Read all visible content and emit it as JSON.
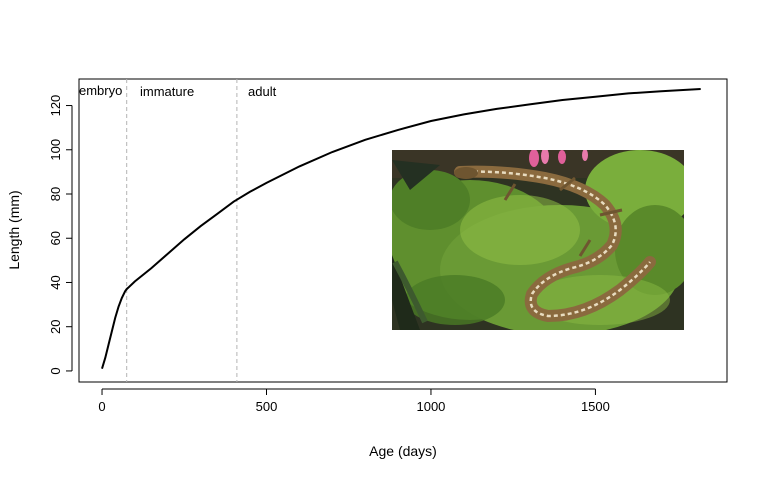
{
  "chart_data": {
    "type": "line",
    "title": "",
    "xlabel": "Age (days)",
    "ylabel": "Length (mm)",
    "xlim": [
      -70,
      1900
    ],
    "ylim": [
      -5,
      132
    ],
    "x_ticks": [
      0,
      500,
      1000,
      1500
    ],
    "y_ticks": [
      0,
      20,
      40,
      60,
      80,
      100,
      120
    ],
    "grid": false,
    "legend": "none",
    "line_color": "#000000",
    "stage_line_color": "#b4b4b4",
    "stage_boundaries": [
      75,
      410
    ],
    "stage_labels": [
      "embryo",
      "immature",
      "adult"
    ],
    "series": [
      {
        "x": [
          0,
          10,
          20,
          30,
          40,
          50,
          60,
          70,
          75,
          100,
          150,
          200,
          250,
          300,
          350,
          400,
          450,
          500,
          600,
          700,
          800,
          900,
          1000,
          1100,
          1200,
          1300,
          1400,
          1500,
          1600,
          1700,
          1820
        ],
        "y": [
          1,
          6,
          12,
          18,
          24,
          29,
          33,
          36,
          37,
          40.5,
          46.5,
          53,
          59.5,
          65.5,
          71,
          76.5,
          81,
          85,
          92.5,
          99,
          104.5,
          109,
          113,
          116,
          118.5,
          120.5,
          122.5,
          124,
          125.5,
          126.5,
          127.5
        ]
      }
    ]
  },
  "photo": {
    "subject": "lizard on moss",
    "colors": {
      "moss": "#5f8f2e",
      "moss_light": "#8fbf45",
      "shadow": "#2a2a1c",
      "lizard_body": "#8a6a3e",
      "lizard_stripe": "#e8dcc0",
      "flower": "#e0609a"
    }
  }
}
